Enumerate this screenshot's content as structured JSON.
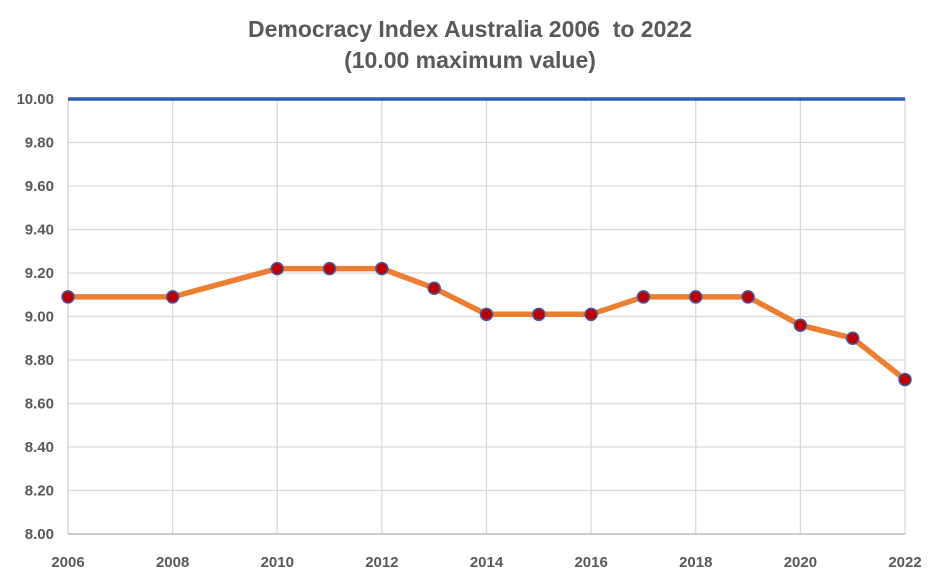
{
  "chart_data": {
    "type": "line",
    "title": "Democracy Index Australia 2006  to 2022",
    "subtitle": "(10.00 maximum value)",
    "xlabel": "",
    "ylabel": "",
    "x": [
      2006,
      2008,
      2010,
      2011,
      2012,
      2013,
      2014,
      2015,
      2016,
      2017,
      2018,
      2019,
      2020,
      2021,
      2022
    ],
    "series": [
      {
        "values": [
          9.09,
          9.09,
          9.22,
          9.22,
          9.22,
          9.13,
          9.01,
          9.01,
          9.01,
          9.09,
          9.09,
          9.09,
          8.96,
          8.9,
          8.71
        ]
      }
    ],
    "reference_line": {
      "value": 10.0,
      "color": "#2e5fb5"
    },
    "xlim": [
      2006,
      2022
    ],
    "ylim": [
      8.0,
      10.0
    ],
    "x_ticks": [
      "2006",
      "2008",
      "2010",
      "2012",
      "2014",
      "2016",
      "2018",
      "2020",
      "2022"
    ],
    "y_ticks": [
      "8.00",
      "8.20",
      "8.40",
      "8.60",
      "8.80",
      "9.00",
      "9.20",
      "9.40",
      "9.60",
      "9.80",
      "10.00"
    ],
    "grid": true,
    "colors": {
      "line": "#ed7d31",
      "marker_fill": "#c00000",
      "marker_edge": "#3b5ba9",
      "grid": "#d9d9d9"
    }
  }
}
